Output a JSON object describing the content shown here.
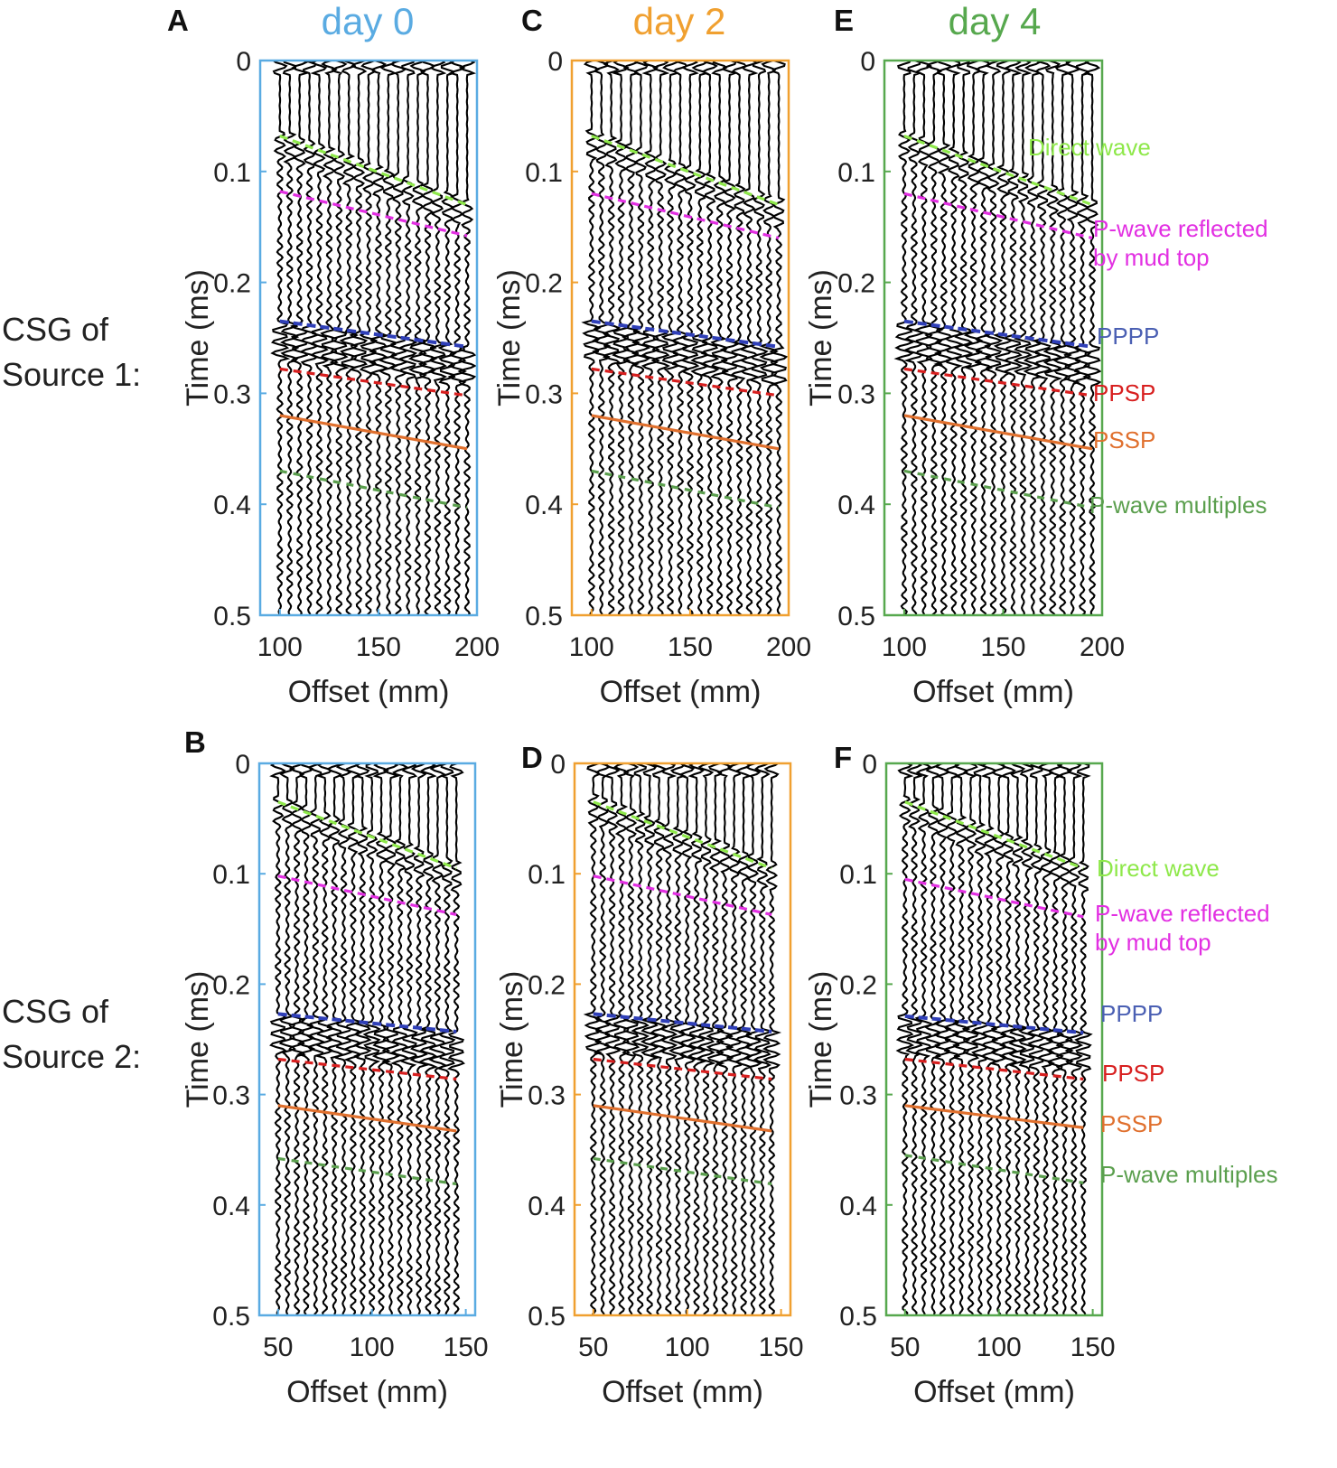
{
  "row_labels": [
    {
      "line1": "CSG of",
      "line2": "Source 1:"
    },
    {
      "line1": "CSG of",
      "line2": "Source 2:"
    }
  ],
  "columns": [
    {
      "title": "day 0",
      "color": "#5aabe2"
    },
    {
      "title": "day 2",
      "color": "#f0a030"
    },
    {
      "title": "day 4",
      "color": "#57a84e"
    }
  ],
  "event_colors": {
    "direct": "#8ee84a",
    "mudtop": "#e22fe2",
    "pppp": "#2f3fb8",
    "ppsp": "#d81f1f",
    "pssp": "#e0702e",
    "multiples": "#5b9f4e"
  },
  "annotation_colors": {
    "direct": "#8ee84a",
    "mudtop": "#e22fe2",
    "pppp": "#4a5fb3",
    "ppsp": "#d81f1f",
    "pssp": "#e0702e",
    "multiples": "#5b9f4e"
  },
  "annotations": {
    "direct": "Direct wave",
    "mudtop_line1": "P-wave reflected",
    "mudtop_line2": "by mud top",
    "pppp": "PPPP",
    "ppsp": "PPSP",
    "pssp": "PSSP",
    "multiples": "P-wave multiples"
  },
  "chart_data": [
    {
      "panel": "A",
      "type": "line",
      "title": "day 0",
      "xlabel": "Offset (mm)",
      "ylabel": "Time (ms)",
      "xlim": [
        90,
        200
      ],
      "ylim": [
        0,
        0.5
      ],
      "y_reversed": true,
      "xticks": [
        "100",
        "150",
        "200"
      ],
      "yticks": [
        "0",
        "0.1",
        "0.2",
        "0.3",
        "0.4",
        "0.5"
      ],
      "trace_offsets": [
        100,
        105,
        110,
        115,
        120,
        125,
        130,
        135,
        140,
        145,
        150,
        155,
        160,
        165,
        170,
        175,
        180,
        185,
        190,
        195
      ],
      "events": [
        {
          "name": "Direct wave",
          "key": "direct",
          "x": [
            100,
            195
          ],
          "t": [
            0.068,
            0.13
          ]
        },
        {
          "name": "P-wave reflected by mud top",
          "key": "mudtop",
          "x": [
            100,
            195
          ],
          "t": [
            0.118,
            0.158
          ]
        },
        {
          "name": "PPPP",
          "key": "pppp",
          "x": [
            100,
            195
          ],
          "t": [
            0.235,
            0.258
          ]
        },
        {
          "name": "PPSP",
          "key": "ppsp",
          "x": [
            100,
            195
          ],
          "t": [
            0.278,
            0.302
          ]
        },
        {
          "name": "PSSP",
          "key": "pssp",
          "x": [
            100,
            195
          ],
          "t": [
            0.32,
            0.35
          ]
        },
        {
          "name": "P-wave multiples",
          "key": "multiples",
          "x": [
            100,
            195
          ],
          "t": [
            0.37,
            0.403
          ]
        }
      ]
    },
    {
      "panel": "B",
      "type": "line",
      "title": "day 0",
      "xlabel": "Offset (mm)",
      "ylabel": "Time (ms)",
      "xlim": [
        40,
        155
      ],
      "ylim": [
        0,
        0.5
      ],
      "y_reversed": true,
      "xticks": [
        "50",
        "100",
        "150"
      ],
      "yticks": [
        "0",
        "0.1",
        "0.2",
        "0.3",
        "0.4",
        "0.5"
      ],
      "trace_offsets": [
        50,
        55,
        60,
        65,
        70,
        75,
        80,
        85,
        90,
        95,
        100,
        105,
        110,
        115,
        120,
        125,
        130,
        135,
        140,
        145
      ],
      "events": [
        {
          "name": "Direct wave",
          "key": "direct",
          "x": [
            50,
            145
          ],
          "t": [
            0.035,
            0.095
          ]
        },
        {
          "name": "P-wave reflected by mud top",
          "key": "mudtop",
          "x": [
            50,
            145
          ],
          "t": [
            0.102,
            0.137
          ]
        },
        {
          "name": "PPPP",
          "key": "pppp",
          "x": [
            50,
            145
          ],
          "t": [
            0.227,
            0.243
          ]
        },
        {
          "name": "PPSP",
          "key": "ppsp",
          "x": [
            50,
            145
          ],
          "t": [
            0.268,
            0.286
          ]
        },
        {
          "name": "PSSP",
          "key": "pssp",
          "x": [
            50,
            145
          ],
          "t": [
            0.31,
            0.333
          ]
        },
        {
          "name": "P-wave multiples",
          "key": "multiples",
          "x": [
            50,
            145
          ],
          "t": [
            0.358,
            0.381
          ]
        }
      ]
    },
    {
      "panel": "C",
      "type": "line",
      "title": "day 2",
      "xlabel": "Offset (mm)",
      "ylabel": "Time (ms)",
      "xlim": [
        90,
        200
      ],
      "ylim": [
        0,
        0.5
      ],
      "y_reversed": true,
      "xticks": [
        "100",
        "150",
        "200"
      ],
      "yticks": [
        "0",
        "0.1",
        "0.2",
        "0.3",
        "0.4",
        "0.5"
      ],
      "trace_offsets": [
        100,
        105,
        110,
        115,
        120,
        125,
        130,
        135,
        140,
        145,
        150,
        155,
        160,
        165,
        170,
        175,
        180,
        185,
        190,
        195
      ],
      "events": [
        {
          "name": "Direct wave",
          "key": "direct",
          "x": [
            100,
            195
          ],
          "t": [
            0.068,
            0.13
          ]
        },
        {
          "name": "P-wave reflected by mud top",
          "key": "mudtop",
          "x": [
            100,
            195
          ],
          "t": [
            0.12,
            0.16
          ]
        },
        {
          "name": "PPPP",
          "key": "pppp",
          "x": [
            100,
            195
          ],
          "t": [
            0.235,
            0.258
          ]
        },
        {
          "name": "PPSP",
          "key": "ppsp",
          "x": [
            100,
            195
          ],
          "t": [
            0.278,
            0.302
          ]
        },
        {
          "name": "PSSP",
          "key": "pssp",
          "x": [
            100,
            195
          ],
          "t": [
            0.32,
            0.35
          ]
        },
        {
          "name": "P-wave multiples",
          "key": "multiples",
          "x": [
            100,
            195
          ],
          "t": [
            0.37,
            0.403
          ]
        }
      ]
    },
    {
      "panel": "D",
      "type": "line",
      "title": "day 2",
      "xlabel": "Offset (mm)",
      "ylabel": "Time (ms)",
      "xlim": [
        40,
        155
      ],
      "ylim": [
        0,
        0.5
      ],
      "y_reversed": true,
      "xticks": [
        "50",
        "100",
        "150"
      ],
      "yticks": [
        "0",
        "0.1",
        "0.2",
        "0.3",
        "0.4",
        "0.5"
      ],
      "trace_offsets": [
        50,
        55,
        60,
        65,
        70,
        75,
        80,
        85,
        90,
        95,
        100,
        105,
        110,
        115,
        120,
        125,
        130,
        135,
        140,
        145
      ],
      "events": [
        {
          "name": "Direct wave",
          "key": "direct",
          "x": [
            50,
            145
          ],
          "t": [
            0.035,
            0.095
          ]
        },
        {
          "name": "P-wave reflected by mud top",
          "key": "mudtop",
          "x": [
            50,
            145
          ],
          "t": [
            0.102,
            0.137
          ]
        },
        {
          "name": "PPPP",
          "key": "pppp",
          "x": [
            50,
            145
          ],
          "t": [
            0.227,
            0.243
          ]
        },
        {
          "name": "PPSP",
          "key": "ppsp",
          "x": [
            50,
            145
          ],
          "t": [
            0.268,
            0.286
          ]
        },
        {
          "name": "PSSP",
          "key": "pssp",
          "x": [
            50,
            145
          ],
          "t": [
            0.31,
            0.333
          ]
        },
        {
          "name": "P-wave multiples",
          "key": "multiples",
          "x": [
            50,
            145
          ],
          "t": [
            0.358,
            0.381
          ]
        }
      ]
    },
    {
      "panel": "E",
      "type": "line",
      "title": "day 4",
      "xlabel": "Offset (mm)",
      "ylabel": "Time (ms)",
      "xlim": [
        90,
        200
      ],
      "ylim": [
        0,
        0.5
      ],
      "y_reversed": true,
      "xticks": [
        "100",
        "150",
        "200"
      ],
      "yticks": [
        "0",
        "0.1",
        "0.2",
        "0.3",
        "0.4",
        "0.5"
      ],
      "trace_offsets": [
        100,
        105,
        110,
        115,
        120,
        125,
        130,
        135,
        140,
        145,
        150,
        155,
        160,
        165,
        170,
        175,
        180,
        185,
        190,
        195
      ],
      "events": [
        {
          "name": "Direct wave",
          "key": "direct",
          "x": [
            100,
            195
          ],
          "t": [
            0.068,
            0.13
          ]
        },
        {
          "name": "P-wave reflected by mud top",
          "key": "mudtop",
          "x": [
            100,
            195
          ],
          "t": [
            0.12,
            0.16
          ]
        },
        {
          "name": "PPPP",
          "key": "pppp",
          "x": [
            100,
            195
          ],
          "t": [
            0.235,
            0.258
          ]
        },
        {
          "name": "PPSP",
          "key": "ppsp",
          "x": [
            100,
            195
          ],
          "t": [
            0.278,
            0.302
          ]
        },
        {
          "name": "PSSP",
          "key": "pssp",
          "x": [
            100,
            195
          ],
          "t": [
            0.32,
            0.35
          ]
        },
        {
          "name": "P-wave multiples",
          "key": "multiples",
          "x": [
            100,
            195
          ],
          "t": [
            0.37,
            0.403
          ]
        }
      ]
    },
    {
      "panel": "F",
      "type": "line",
      "title": "day 4",
      "xlabel": "Offset (mm)",
      "ylabel": "Time (ms)",
      "xlim": [
        40,
        155
      ],
      "ylim": [
        0,
        0.5
      ],
      "y_reversed": true,
      "xticks": [
        "50",
        "100",
        "150"
      ],
      "yticks": [
        "0",
        "0.1",
        "0.2",
        "0.3",
        "0.4",
        "0.5"
      ],
      "trace_offsets": [
        50,
        55,
        60,
        65,
        70,
        75,
        80,
        85,
        90,
        95,
        100,
        105,
        110,
        115,
        120,
        125,
        130,
        135,
        140,
        145
      ],
      "events": [
        {
          "name": "Direct wave",
          "key": "direct",
          "x": [
            50,
            145
          ],
          "t": [
            0.035,
            0.095
          ]
        },
        {
          "name": "P-wave reflected by mud top",
          "key": "mudtop",
          "x": [
            50,
            145
          ],
          "t": [
            0.105,
            0.139
          ]
        },
        {
          "name": "PPPP",
          "key": "pppp",
          "x": [
            50,
            145
          ],
          "t": [
            0.229,
            0.244
          ]
        },
        {
          "name": "PPSP",
          "key": "ppsp",
          "x": [
            50,
            145
          ],
          "t": [
            0.268,
            0.286
          ]
        },
        {
          "name": "PSSP",
          "key": "pssp",
          "x": [
            50,
            145
          ],
          "t": [
            0.31,
            0.33
          ]
        },
        {
          "name": "P-wave multiples",
          "key": "multiples",
          "x": [
            50,
            145
          ],
          "t": [
            0.355,
            0.38
          ]
        }
      ]
    }
  ]
}
